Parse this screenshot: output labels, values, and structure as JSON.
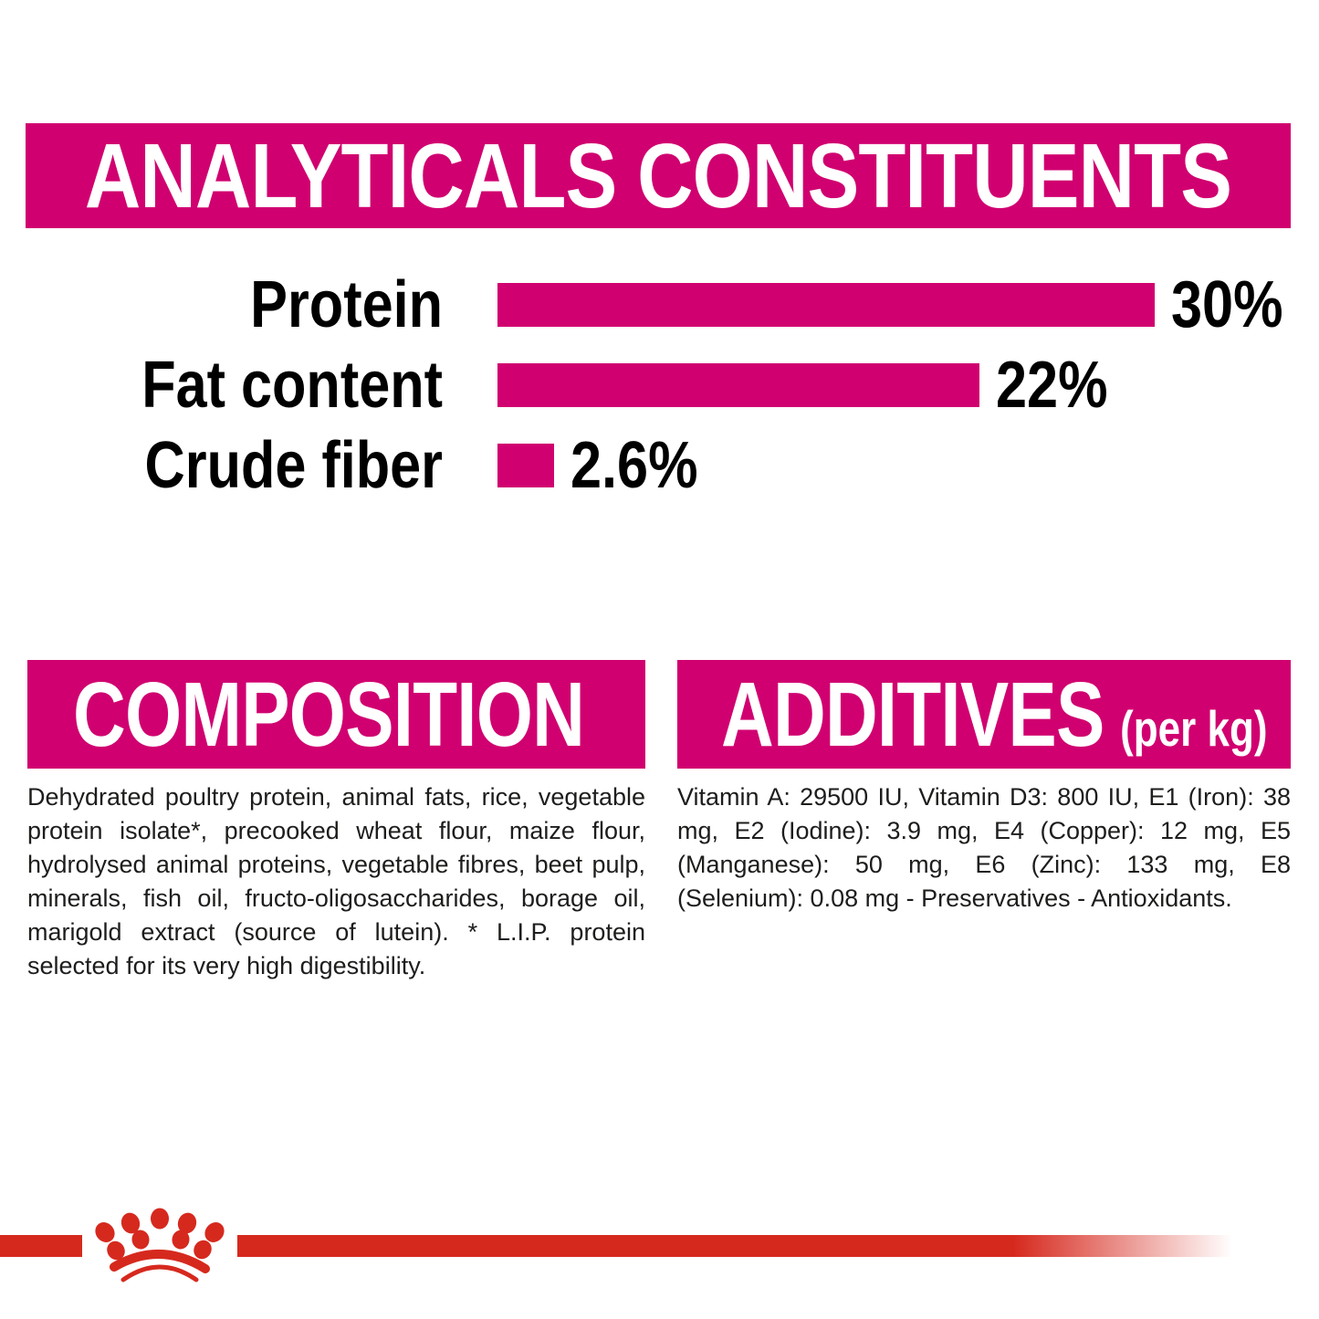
{
  "colors": {
    "pink": "#d00070",
    "red": "#d6291e",
    "text": "#1d1d1b"
  },
  "analyticals": {
    "title": "ANALYTICALS CONSTITUENTS"
  },
  "chart_data": {
    "type": "bar",
    "orientation": "horizontal",
    "categories": [
      "Protein",
      "Fat content",
      "Crude fiber"
    ],
    "values": [
      30,
      22,
      2.6
    ],
    "value_labels": [
      "30%",
      "22%",
      "2.6%"
    ],
    "bar_color": "#d00070",
    "xlim": [
      0,
      30
    ],
    "grid": false,
    "legend": false
  },
  "composition": {
    "title": "COMPOSITION",
    "body": "Dehydrated poultry protein, animal fats, rice, vegetable protein isolate*, precooked wheat flour, maize flour, hydrolysed animal proteins, vegetable fibres, beet pulp, minerals, fish oil, fructo-oligosaccharides, borage oil, marigold extract (source of lutein). * L.I.P. protein selected for its very high digestibility."
  },
  "additives": {
    "title": "ADDITIVES",
    "subtitle": "(per kg)",
    "body": "Vitamin A: 29500 IU, Vitamin D3: 800 IU, E1 (Iron): 38 mg, E2 (Iodine): 3.9 mg, E4 (Copper): 12 mg, E5 (Manganese): 50 mg, E6 (Zinc): 133 mg, E8 (Selenium): 0.08 mg - Preservatives - Antioxidants."
  },
  "footer": {
    "logo": "royal-canin-crown"
  }
}
